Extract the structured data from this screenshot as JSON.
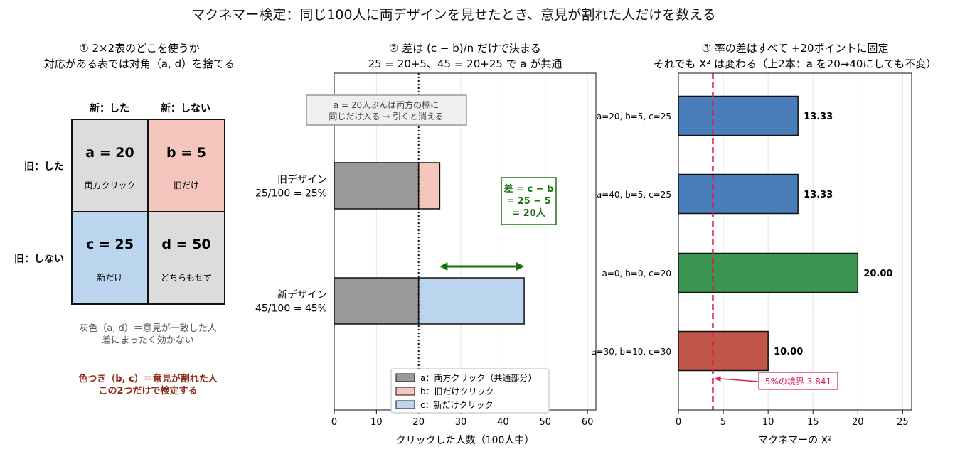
{
  "figure": {
    "title": "マクネマー検定：同じ100人に両デザインを見せたとき、意見が割れた人だけを数える"
  },
  "panel1": {
    "title_line1": "① 2×2表のどこを使うか",
    "title_line2": "対応がある表では対角（a, d）を捨てる",
    "col_headers": [
      "新：した",
      "新：しない"
    ],
    "row_headers": [
      "旧：した",
      "旧：しない"
    ],
    "cells": [
      {
        "label": "a = 20",
        "sub": "両方クリック",
        "fill": "#dcdcdc"
      },
      {
        "label": "b = 5",
        "sub": "旧だけ",
        "fill": "#f4c6be"
      },
      {
        "label": "c = 25",
        "sub": "新だけ",
        "fill": "#bcd5ee"
      },
      {
        "label": "d = 50",
        "sub": "どちらもせず",
        "fill": "#dcdcdc"
      }
    ],
    "note_gray_line1": "灰色（a, d）＝意見が一致した人",
    "note_gray_line2": "差にまったく効かない",
    "note_color_line1": "色つき（b, c）＝意見が割れた人",
    "note_color_line2": "この2つだけで検定する",
    "note_color_hex": "#8b2a17"
  },
  "chart_data": [
    {
      "type": "bar",
      "orientation": "horizontal",
      "stacked": true,
      "title": "② 差は (c − b)/n だけで決まる",
      "subtitle": "25 = 20+5、45 = 20+25 で a が共通",
      "xlabel": "クリックした人数（100人中）",
      "ylabel": "",
      "xlim": [
        0,
        62
      ],
      "xticks": [
        0,
        10,
        20,
        30,
        40,
        50,
        60
      ],
      "categories": [
        {
          "line1": "旧デザイン",
          "line2": "25/100 = 25%"
        },
        {
          "line1": "新デザイン",
          "line2": "45/100 = 45%"
        }
      ],
      "series": [
        {
          "name": "a：両方クリック（共通部分）",
          "values": [
            20,
            20
          ],
          "color": "#999999"
        },
        {
          "name": "b：旧だけクリック",
          "values": [
            5,
            0
          ],
          "color": "#f4c6be"
        },
        {
          "name": "c：新だけクリック",
          "values": [
            0,
            25
          ],
          "color": "#bcd5ee"
        }
      ],
      "reference_line": {
        "x": 20,
        "style": "dotted"
      },
      "annotation_box": {
        "line1": "a = 20人ぶんは両方の棒に",
        "line2": "同じだけ入る → 引くと消える"
      },
      "diff_arrow": {
        "from": 25,
        "to": 45
      },
      "diff_label": {
        "line1": "差 = c − b",
        "line2": "= 25 − 5",
        "line3": "= 20人",
        "color": "#1a6e12"
      },
      "legend_position": "bottom-center",
      "grid": "vertical"
    },
    {
      "type": "bar",
      "orientation": "horizontal",
      "title": "③ 率の差はすべて +20ポイントに固定",
      "subtitle": "それでも X² は変わる（上2本：a を20→40にしても不変）",
      "xlabel": "マクネマーの X²",
      "ylabel": "",
      "xlim": [
        0,
        26
      ],
      "xticks": [
        0,
        5,
        10,
        15,
        20,
        25
      ],
      "categories": [
        "a=20, b=5, c=25",
        "a=40, b=5, c=25",
        "a=0, b=0, c=20",
        "a=30, b=10, c=30"
      ],
      "values": [
        13.33,
        13.33,
        20.0,
        10.0
      ],
      "value_labels": [
        "13.33",
        "13.33",
        "20.00",
        "10.00"
      ],
      "colors": [
        "#4a7ebb",
        "#4a7ebb",
        "#3a9552",
        "#c0574a"
      ],
      "threshold": {
        "value": 3.841,
        "label": "5%の境界 3.841",
        "color": "#d62050"
      },
      "grid": "vertical"
    }
  ]
}
